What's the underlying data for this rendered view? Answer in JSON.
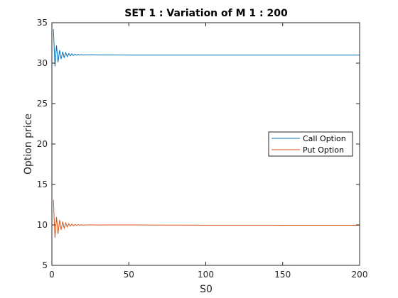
{
  "chart_data": {
    "type": "line",
    "title": "SET 1 : Variation of M 1 : 200",
    "xlabel": "S0",
    "ylabel": "Option price",
    "xlim": [
      0,
      200
    ],
    "ylim": [
      5,
      35
    ],
    "xticks": [
      0,
      50,
      100,
      150,
      200
    ],
    "yticks": [
      5,
      10,
      15,
      20,
      25,
      30,
      35
    ],
    "grid": false,
    "legend": {
      "location": "east",
      "entries": [
        "Call Option",
        "Put Option"
      ]
    },
    "series": [
      {
        "name": "Call Option",
        "color": "#0072BD",
        "x": [
          1,
          2,
          3,
          4,
          5,
          6,
          7,
          8,
          9,
          10,
          11,
          12,
          13,
          14,
          15,
          16,
          17,
          18,
          19,
          20,
          25,
          30,
          40,
          50,
          75,
          100,
          125,
          150,
          175,
          200
        ],
        "y": [
          34.2,
          29.6,
          32.2,
          30.1,
          31.6,
          30.5,
          31.4,
          30.7,
          31.3,
          30.8,
          31.2,
          30.9,
          31.15,
          30.95,
          31.1,
          30.98,
          31.08,
          31.0,
          31.06,
          31.02,
          31.04,
          31.02,
          31.02,
          31.0,
          31.0,
          31.0,
          31.0,
          31.0,
          31.0,
          31.0
        ]
      },
      {
        "name": "Put Option",
        "color": "#D95319",
        "x": [
          1,
          2,
          3,
          4,
          5,
          6,
          7,
          8,
          9,
          10,
          11,
          12,
          13,
          14,
          15,
          16,
          17,
          18,
          19,
          20,
          25,
          30,
          40,
          50,
          75,
          100,
          125,
          150,
          175,
          200
        ],
        "y": [
          13.1,
          8.4,
          11.0,
          8.9,
          10.6,
          9.4,
          10.4,
          9.6,
          10.25,
          9.75,
          10.15,
          9.85,
          10.1,
          9.9,
          10.06,
          9.94,
          10.04,
          9.96,
          10.02,
          9.98,
          10.01,
          9.99,
          10.0,
          10.0,
          9.98,
          9.97,
          9.97,
          9.96,
          9.96,
          9.96
        ]
      }
    ]
  }
}
